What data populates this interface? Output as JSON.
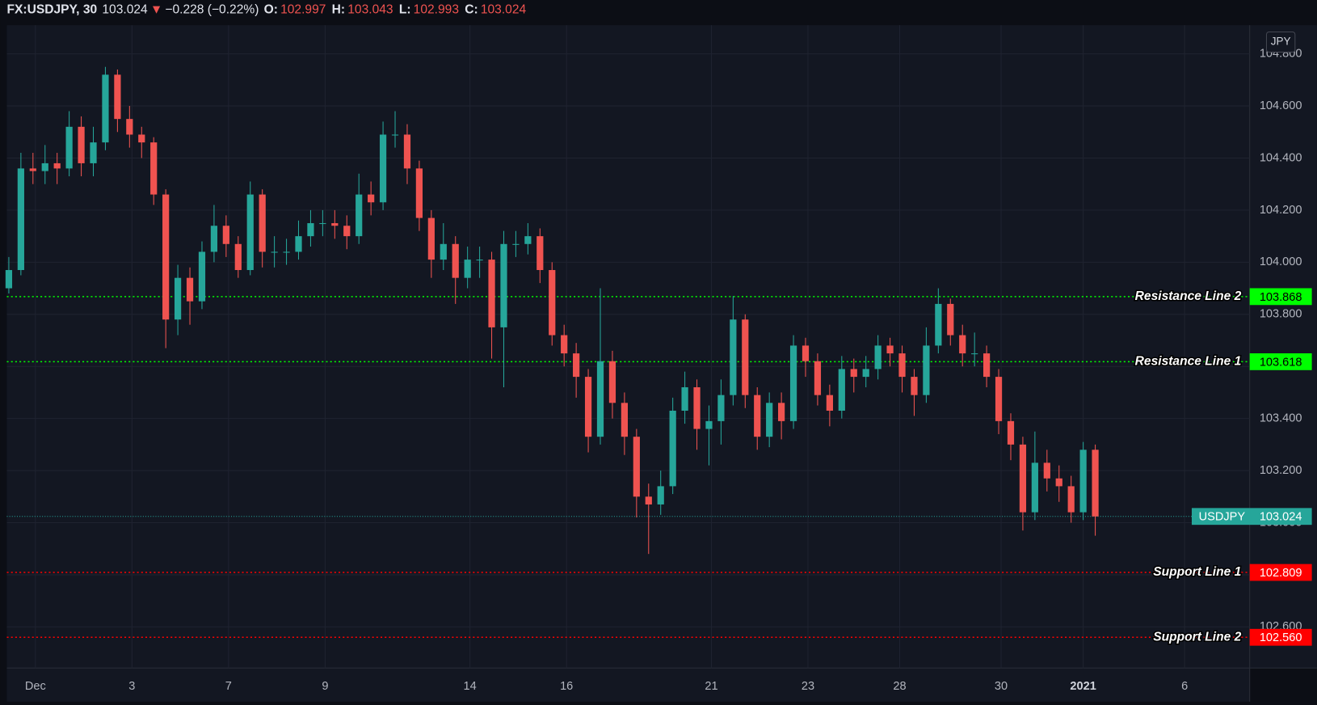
{
  "header": {
    "symbol": "FX:USDJPY, 30",
    "direction": "▼",
    "change": "−0.228 (−0.22%)",
    "ohlc": [
      {
        "label": "O:",
        "value": "102.997"
      },
      {
        "label": "H:",
        "value": "103.043"
      },
      {
        "label": "L:",
        "value": "102.993"
      },
      {
        "label": "C:",
        "value": "103.024"
      }
    ]
  },
  "chart_data": {
    "type": "candlestick",
    "currency": "JPY",
    "symbol": "USDJPY",
    "last_price": 103.024,
    "up_color": "#26a69a",
    "down_color": "#ef5350",
    "grid": true,
    "xlim": [
      -0.591,
      25.148
    ],
    "xticks": [
      {
        "value": 0,
        "label": "Dec"
      },
      {
        "value": 2,
        "label": "3"
      },
      {
        "value": 4,
        "label": "7"
      },
      {
        "value": 6,
        "label": "9"
      },
      {
        "value": 9,
        "label": "14"
      },
      {
        "value": 11,
        "label": "16"
      },
      {
        "value": 14,
        "label": "21"
      },
      {
        "value": 16,
        "label": "23"
      },
      {
        "value": 17.9,
        "label": "28"
      },
      {
        "value": 20,
        "label": "30"
      },
      {
        "value": 21.7,
        "label": "2021"
      },
      {
        "value": 23.8,
        "label": "6"
      }
    ],
    "ylim": [
      102.442,
      104.91
    ],
    "yticks": [
      {
        "value": 102.6,
        "label": "102.600"
      },
      {
        "value": 102.8,
        "label": "102.800"
      },
      {
        "value": 103.0,
        "label": "103.000"
      },
      {
        "value": 103.2,
        "label": "103.200"
      },
      {
        "value": 103.4,
        "label": "103.400"
      },
      {
        "value": 103.6,
        "label": "103.600"
      },
      {
        "value": 103.8,
        "label": "103.800"
      },
      {
        "value": 104.0,
        "label": "104.000"
      },
      {
        "value": 104.2,
        "label": "104.200"
      },
      {
        "value": 104.4,
        "label": "104.400"
      },
      {
        "value": 104.6,
        "label": "104.600"
      },
      {
        "value": 104.8,
        "label": "104.800"
      }
    ],
    "levels": [
      {
        "name": "Resistance Line 2",
        "value": 103.868,
        "color": "#00ff00"
      },
      {
        "name": "Resistance Line 1",
        "value": 103.618,
        "color": "#00ff00"
      },
      {
        "name": "Support Line 1",
        "value": 102.809,
        "color": "#ff0000"
      },
      {
        "name": "Support Line 2",
        "value": 102.56,
        "value_label": "102.560",
        "color": "#ff0000"
      }
    ],
    "x": [
      -0.55,
      -0.3,
      -0.05,
      0.2,
      0.45,
      0.7,
      0.95,
      1.2,
      1.45,
      1.7,
      1.95,
      2.2,
      2.45,
      2.7,
      2.95,
      3.2,
      3.45,
      3.7,
      3.95,
      4.2,
      4.45,
      4.7,
      4.95,
      5.2,
      5.45,
      5.7,
      5.95,
      6.2,
      6.45,
      6.7,
      6.95,
      7.2,
      7.45,
      7.7,
      7.95,
      8.2,
      8.45,
      8.7,
      8.95,
      9.2,
      9.45,
      9.7,
      9.95,
      10.2,
      10.45,
      10.7,
      10.95,
      11.2,
      11.45,
      11.7,
      11.95,
      12.2,
      12.45,
      12.7,
      12.95,
      13.2,
      13.45,
      13.7,
      13.95,
      14.2,
      14.45,
      14.7,
      14.95,
      15.2,
      15.45,
      15.7,
      15.95,
      16.2,
      16.45,
      16.7,
      16.95,
      17.2,
      17.45,
      17.7,
      17.95,
      18.2,
      18.45,
      18.7,
      18.95,
      19.2,
      19.45,
      19.7,
      19.95,
      20.2,
      20.45,
      20.7,
      20.95,
      21.2,
      21.45,
      21.7,
      21.95
    ],
    "open": [
      103.9,
      103.97,
      104.36,
      104.35,
      104.38,
      104.36,
      104.52,
      104.38,
      104.46,
      104.72,
      104.55,
      104.49,
      104.46,
      104.26,
      103.78,
      103.94,
      103.85,
      104.04,
      104.14,
      104.07,
      103.97,
      104.26,
      104.04,
      104.04,
      104.04,
      104.1,
      104.15,
      104.15,
      104.14,
      104.1,
      104.26,
      104.23,
      104.49,
      104.49,
      104.36,
      104.17,
      104.01,
      104.07,
      103.94,
      104.01,
      104.01,
      103.75,
      104.07,
      104.07,
      104.1,
      103.97,
      103.72,
      103.65,
      103.56,
      103.33,
      103.62,
      103.46,
      103.33,
      103.1,
      103.07,
      103.14,
      103.43,
      103.52,
      103.36,
      103.39,
      103.49,
      103.78,
      103.49,
      103.33,
      103.46,
      103.39,
      103.68,
      103.62,
      103.49,
      103.43,
      103.59,
      103.56,
      103.59,
      103.68,
      103.65,
      103.56,
      103.49,
      103.68,
      103.84,
      103.72,
      103.65,
      103.65,
      103.56,
      103.39,
      103.3,
      103.04,
      103.23,
      103.17,
      103.14,
      103.04,
      103.28
    ],
    "high": [
      104.02,
      104.42,
      104.42,
      104.45,
      104.42,
      104.58,
      104.56,
      104.52,
      104.75,
      104.74,
      104.6,
      104.52,
      104.48,
      104.28,
      103.99,
      103.98,
      104.08,
      104.22,
      104.18,
      104.1,
      104.31,
      104.28,
      104.1,
      104.09,
      104.16,
      104.2,
      104.2,
      104.2,
      104.18,
      104.34,
      104.31,
      104.54,
      104.58,
      104.53,
      104.39,
      104.2,
      104.15,
      104.1,
      104.06,
      104.06,
      104.04,
      104.12,
      104.12,
      104.15,
      104.13,
      104.0,
      103.76,
      103.69,
      103.59,
      103.9,
      103.66,
      103.5,
      103.36,
      103.15,
      103.2,
      103.48,
      103.58,
      103.55,
      103.45,
      103.55,
      103.87,
      103.8,
      103.52,
      103.5,
      103.5,
      103.72,
      103.71,
      103.65,
      103.53,
      103.64,
      103.63,
      103.64,
      103.72,
      103.71,
      103.68,
      103.59,
      103.75,
      103.9,
      103.86,
      103.76,
      103.73,
      103.68,
      103.59,
      103.42,
      103.33,
      103.35,
      103.28,
      103.22,
      103.18,
      103.31,
      103.3
    ],
    "low": [
      103.88,
      103.95,
      104.3,
      104.3,
      104.3,
      104.33,
      104.33,
      104.33,
      104.43,
      104.5,
      104.44,
      104.4,
      104.22,
      103.67,
      103.72,
      103.76,
      103.82,
      104.0,
      104.02,
      103.94,
      103.95,
      103.98,
      103.98,
      103.99,
      104.01,
      104.06,
      104.1,
      104.09,
      104.05,
      104.07,
      104.18,
      104.2,
      104.44,
      104.3,
      104.12,
      103.94,
      103.97,
      103.84,
      103.9,
      103.94,
      103.63,
      103.52,
      104.02,
      104.03,
      103.92,
      103.68,
      103.6,
      103.48,
      103.27,
      103.3,
      103.4,
      103.26,
      103.02,
      102.88,
      103.03,
      103.11,
      103.38,
      103.28,
      103.22,
      103.3,
      103.45,
      103.44,
      103.28,
      103.29,
      103.32,
      103.36,
      103.56,
      103.45,
      103.37,
      103.4,
      103.5,
      103.52,
      103.55,
      103.6,
      103.5,
      103.41,
      103.46,
      103.65,
      103.68,
      103.6,
      103.6,
      103.52,
      103.34,
      103.24,
      102.97,
      103.01,
      103.12,
      103.08,
      103.0,
      103.01,
      102.95
    ],
    "close": [
      103.97,
      104.36,
      104.35,
      104.38,
      104.36,
      104.52,
      104.38,
      104.46,
      104.72,
      104.55,
      104.49,
      104.46,
      104.26,
      103.78,
      103.94,
      103.85,
      104.04,
      104.14,
      104.07,
      103.97,
      104.26,
      104.04,
      104.04,
      104.04,
      104.1,
      104.15,
      104.15,
      104.14,
      104.1,
      104.26,
      104.23,
      104.49,
      104.49,
      104.36,
      104.17,
      104.01,
      104.07,
      103.94,
      104.01,
      104.01,
      103.75,
      104.07,
      104.07,
      104.1,
      103.97,
      103.72,
      103.65,
      103.56,
      103.33,
      103.62,
      103.46,
      103.33,
      103.1,
      103.07,
      103.14,
      103.43,
      103.52,
      103.36,
      103.39,
      103.49,
      103.78,
      103.49,
      103.33,
      103.46,
      103.39,
      103.68,
      103.62,
      103.49,
      103.43,
      103.59,
      103.56,
      103.59,
      103.68,
      103.65,
      103.56,
      103.49,
      103.68,
      103.84,
      103.72,
      103.65,
      103.65,
      103.56,
      103.39,
      103.3,
      103.04,
      103.23,
      103.17,
      103.14,
      103.04,
      103.28,
      103.024
    ]
  }
}
